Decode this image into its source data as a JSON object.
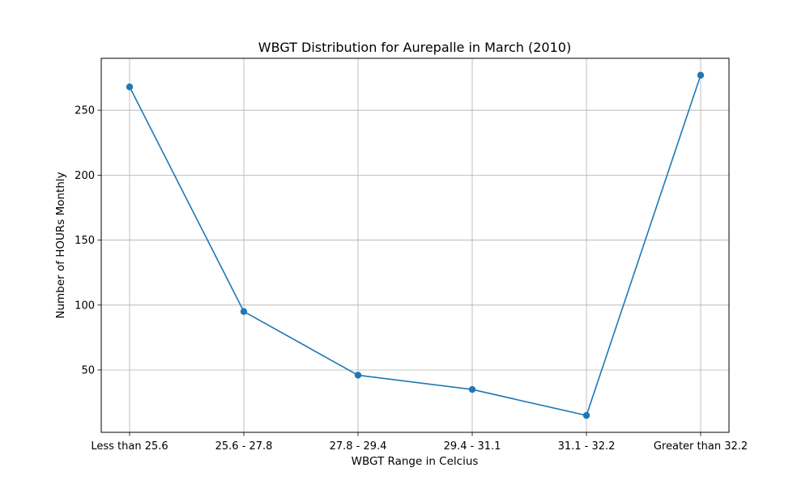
{
  "chart_data": {
    "type": "line",
    "title": "WBGT Distribution for Aurepalle in March (2010)",
    "xlabel": "WBGT Range in Celcius",
    "ylabel": "Number of HOURs Monthly",
    "categories": [
      "Less than 25.6",
      "25.6 - 27.8",
      "27.8 - 29.4",
      "29.4 - 31.1",
      "31.1 - 32.2",
      "Greater than 32.2"
    ],
    "series": [
      {
        "values": [
          268,
          95,
          46,
          35,
          15,
          277
        ],
        "color": "#1f77b4",
        "marker": "circle"
      }
    ],
    "yticks": [
      50,
      100,
      150,
      200,
      250
    ],
    "ylim": [
      2,
      290
    ],
    "grid": true,
    "legend": false
  }
}
